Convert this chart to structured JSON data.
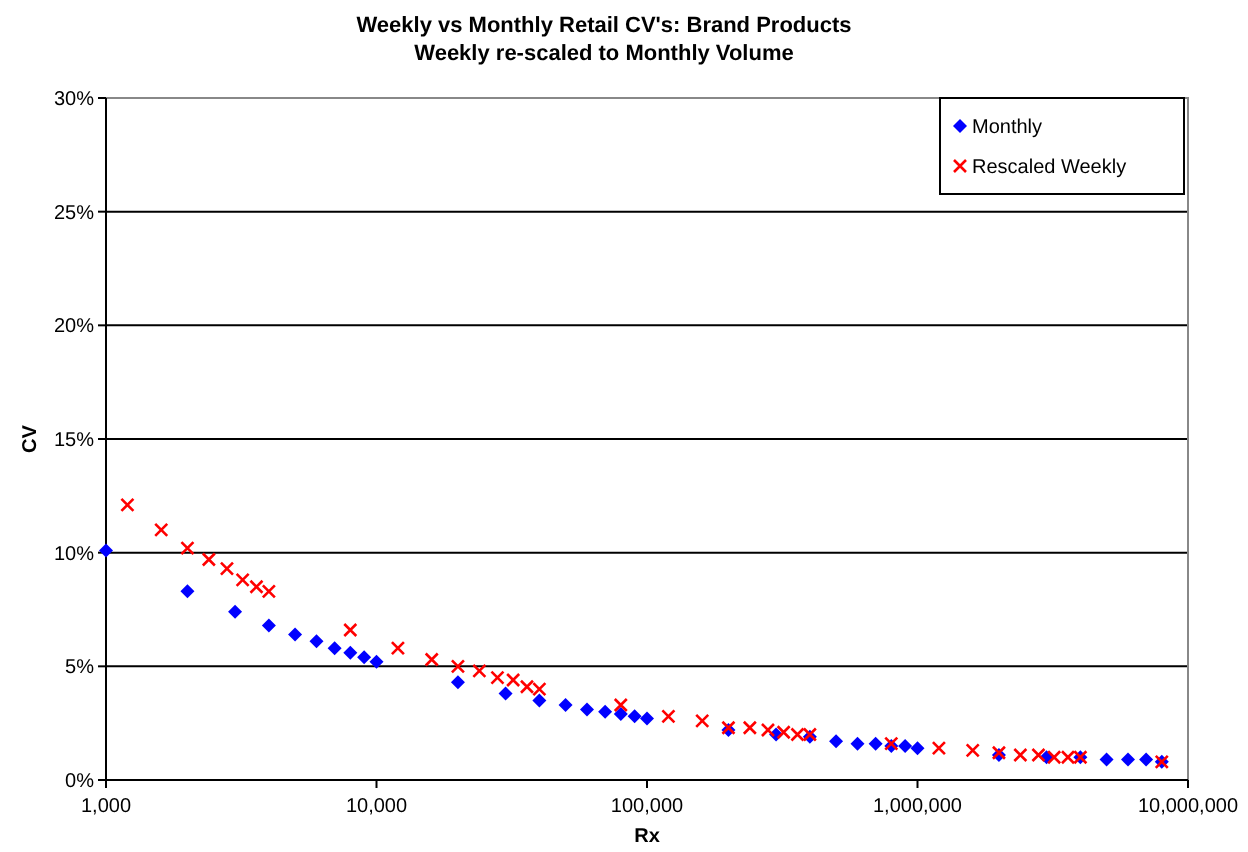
{
  "chart_data": {
    "type": "scatter",
    "title": "Weekly vs Monthly Retail CV's: Brand Products",
    "subtitle": "Weekly re-scaled to Monthly Volume",
    "xlabel": "Rx",
    "ylabel": "CV",
    "log": "x",
    "grid": "y",
    "legend": "top right",
    "xlim": [
      1000,
      10000000
    ],
    "xticks": [
      {
        "value": 1000,
        "label": "1,000"
      },
      {
        "value": 10000,
        "label": "10,000"
      },
      {
        "value": 100000,
        "label": "100,000"
      },
      {
        "value": 1000000,
        "label": "1,000,000"
      },
      {
        "value": 10000000,
        "label": "10,000,000"
      }
    ],
    "ylim": [
      0,
      30
    ],
    "yticks": [
      {
        "value": 0,
        "label": "0%"
      },
      {
        "value": 5,
        "label": "5%"
      },
      {
        "value": 10,
        "label": "10%"
      },
      {
        "value": 15,
        "label": "15%"
      },
      {
        "value": 20,
        "label": "20%"
      },
      {
        "value": 25,
        "label": "25%"
      },
      {
        "value": 30,
        "label": "30%"
      }
    ],
    "series": [
      {
        "name": "Monthly",
        "color": "#0000ff",
        "marker": "diamond",
        "x": [
          1000,
          2000,
          3000,
          4000,
          5000,
          6000,
          7000,
          8000,
          9000,
          10000,
          20000,
          30000,
          40000,
          50000,
          60000,
          70000,
          80000,
          90000,
          100000,
          200000,
          300000,
          400000,
          500000,
          600000,
          700000,
          800000,
          900000,
          1000000,
          2000000,
          3000000,
          4000000,
          5000000,
          6000000,
          7000000,
          8000000
        ],
        "values": [
          10.1,
          8.3,
          7.4,
          6.8,
          6.4,
          6.1,
          5.8,
          5.6,
          5.4,
          5.2,
          4.3,
          3.8,
          3.5,
          3.3,
          3.1,
          3.0,
          2.9,
          2.8,
          2.7,
          2.2,
          2.0,
          1.9,
          1.7,
          1.6,
          1.6,
          1.5,
          1.5,
          1.4,
          1.1,
          1.0,
          1.0,
          0.9,
          0.9,
          0.9,
          0.8
        ]
      },
      {
        "name": "Rescaled Weekly",
        "color": "#ff0000",
        "marker": "cross",
        "x": [
          1200,
          1600,
          2000,
          2400,
          2800,
          3200,
          3600,
          4000,
          8000,
          12000,
          16000,
          20000,
          24000,
          28000,
          32000,
          36000,
          40000,
          80000,
          120000,
          160000,
          200000,
          240000,
          280000,
          320000,
          360000,
          400000,
          800000,
          1200000,
          1600000,
          2000000,
          2400000,
          2800000,
          3200000,
          3600000,
          4000000,
          8000000
        ],
        "values": [
          12.1,
          11.0,
          10.2,
          9.7,
          9.3,
          8.8,
          8.5,
          8.3,
          6.6,
          5.8,
          5.3,
          5.0,
          4.8,
          4.5,
          4.4,
          4.1,
          4.0,
          3.3,
          2.8,
          2.6,
          2.3,
          2.3,
          2.2,
          2.1,
          2.0,
          2.0,
          1.6,
          1.4,
          1.3,
          1.2,
          1.1,
          1.1,
          1.0,
          1.0,
          1.0,
          0.8
        ]
      }
    ]
  }
}
